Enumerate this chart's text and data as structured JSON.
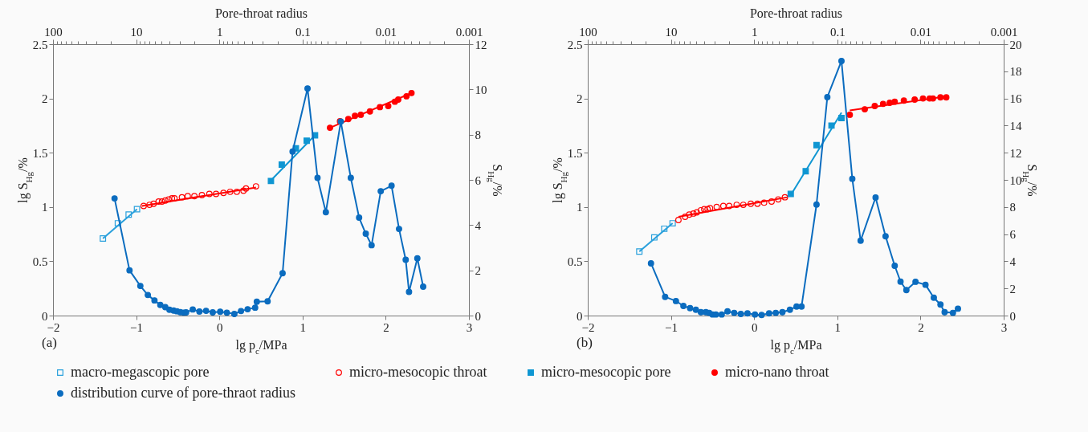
{
  "chart_data": [
    {
      "type": "scatter",
      "xlabel": "lg p$_{c}$/MPa",
      "ylabel": "lg S$_{Hg}$/%",
      "y2label": "S$_{Hg}$/%",
      "x2label": "Pore-throat radius",
      "xlim": [
        -2,
        3
      ],
      "xticks": [
        -2,
        -1,
        0,
        1,
        2,
        3
      ],
      "ylim": [
        0,
        2.5
      ],
      "yticks": [
        0,
        0.5,
        1,
        1.5,
        2,
        2.5
      ],
      "y2lim": [
        0,
        12
      ],
      "y2ticks": [
        0,
        2,
        4,
        6,
        8,
        10,
        12
      ],
      "x2lim": [
        100,
        0.001
      ],
      "x2ticks": [
        100,
        {
          "value": 90,
          "label": null
        },
        {
          "value": 80,
          "label": null
        },
        {
          "value": 70,
          "label": null
        },
        {
          "value": 60,
          "label": null
        },
        {
          "value": 50,
          "label": null
        },
        {
          "value": 40,
          "label": null
        },
        {
          "value": 30,
          "label": null
        },
        {
          "value": 20,
          "label": null
        },
        10,
        {
          "value": 9,
          "label": null
        },
        {
          "value": 8,
          "label": null
        },
        {
          "value": 7,
          "label": null
        },
        {
          "value": 6,
          "label": null
        },
        {
          "value": 5,
          "label": null
        },
        {
          "value": 4,
          "label": null
        },
        {
          "value": 3,
          "label": null
        },
        {
          "value": 2,
          "label": null
        },
        1,
        {
          "value": 0.9,
          "label": null
        },
        {
          "value": 0.8,
          "label": null
        },
        {
          "value": 0.7,
          "label": null
        },
        {
          "value": 0.6,
          "label": null
        },
        {
          "value": 0.5,
          "label": null
        },
        {
          "value": 0.4,
          "label": null
        },
        {
          "value": 0.3,
          "label": null
        },
        {
          "value": 0.2,
          "label": null
        },
        0.1,
        {
          "value": 0.09,
          "label": null
        },
        {
          "value": 0.08,
          "label": null
        },
        {
          "value": 0.07,
          "label": null
        },
        {
          "value": 0.06,
          "label": null
        },
        {
          "value": 0.05,
          "label": null
        },
        {
          "value": 0.04,
          "label": null
        },
        {
          "value": 0.03,
          "label": null
        },
        {
          "value": 0.02,
          "label": null
        },
        0.01,
        {
          "value": 0.009,
          "label": null
        },
        {
          "value": 0.008,
          "label": null
        },
        {
          "value": 0.007,
          "label": null
        },
        {
          "value": 0.006,
          "label": null
        },
        {
          "value": 0.005,
          "label": null
        },
        {
          "value": 0.004,
          "label": null
        },
        {
          "value": 0.003,
          "label": null
        },
        {
          "value": 0.002,
          "label": null
        },
        0.001
      ],
      "legend": "bottom",
      "log": "x2",
      "annotations": [
        "(a)"
      ],
      "series": [
        {
          "type": "scatter",
          "name": "macro-megascopic pore",
          "color": "#29a0dc",
          "marker": "square-open",
          "x": [
            -1.4,
            -1.22,
            -1.09,
            -0.99
          ],
          "values": [
            0.71,
            0.85,
            0.93,
            0.98
          ]
        },
        {
          "type": "line",
          "color": "#29a0dc",
          "x": [
            -1.4,
            -0.99
          ],
          "values": [
            0.71,
            0.98
          ]
        },
        {
          "type": "scatter",
          "name": "micro-mesocopic throat",
          "color": "#ff0000",
          "marker": "circle-open",
          "x": [
            -0.91,
            -0.84,
            -0.79,
            -0.73,
            -0.69,
            -0.65,
            -0.61,
            -0.57,
            -0.54,
            -0.45,
            -0.38,
            -0.3,
            -0.21,
            -0.12,
            -0.04,
            0.05,
            0.13,
            0.21,
            0.29,
            0.32,
            0.44
          ],
          "values": [
            1.01,
            1.02,
            1.03,
            1.05,
            1.05,
            1.06,
            1.07,
            1.08,
            1.08,
            1.09,
            1.1,
            1.1,
            1.11,
            1.12,
            1.12,
            1.13,
            1.14,
            1.14,
            1.15,
            1.17,
            1.19
          ]
        },
        {
          "type": "line",
          "color": "#ff0000",
          "x": [
            -0.93,
            0.44
          ],
          "values": [
            1.01,
            1.18
          ]
        },
        {
          "type": "scatter",
          "name": "micro-mesocopic pore",
          "color": "#0f96d2",
          "marker": "square",
          "x": [
            0.62,
            0.75,
            0.92,
            1.05,
            1.15
          ],
          "values": [
            1.24,
            1.39,
            1.54,
            1.61,
            1.66
          ]
        },
        {
          "type": "line",
          "color": "#0f96d2",
          "x": [
            0.6,
            1.16
          ],
          "values": [
            1.23,
            1.67
          ]
        },
        {
          "type": "scatter",
          "name": "micro-nano throat",
          "color": "#ff0000",
          "marker": "circle",
          "x": [
            1.33,
            1.45,
            1.55,
            1.63,
            1.7,
            1.81,
            1.93,
            2.03,
            2.11,
            2.15,
            2.25,
            2.31
          ],
          "values": [
            1.73,
            1.79,
            1.81,
            1.84,
            1.85,
            1.88,
            1.92,
            1.93,
            1.97,
            1.99,
            2.02,
            2.05
          ]
        },
        {
          "type": "line",
          "color": "#ff0000",
          "x": [
            1.33,
            2.31
          ],
          "values": [
            1.73,
            2.05
          ]
        },
        {
          "type": "line",
          "name": "distribution curve of pore-thraot radius",
          "color": "#0b6cbf",
          "marker": "circle",
          "axis": "y2",
          "x": [
            -1.26,
            -1.08,
            -0.95,
            -0.86,
            -0.78,
            -0.71,
            -0.65,
            -0.6,
            -0.55,
            -0.51,
            -0.47,
            -0.43,
            -0.4,
            -0.32,
            -0.24,
            -0.16,
            -0.08,
            0.01,
            0.09,
            0.18,
            0.26,
            0.34,
            0.43,
            0.45,
            0.58,
            0.76,
            0.88,
            1.06,
            1.18,
            1.28,
            1.46,
            1.58,
            1.68,
            1.76,
            1.83,
            1.94,
            2.07,
            2.16,
            2.24,
            2.28,
            2.38,
            2.45
          ],
          "values": [
            5.18,
            2.0,
            1.31,
            0.91,
            0.67,
            0.47,
            0.37,
            0.26,
            0.22,
            0.19,
            0.15,
            0.13,
            0.14,
            0.27,
            0.18,
            0.21,
            0.14,
            0.17,
            0.13,
            0.07,
            0.2,
            0.28,
            0.35,
            0.61,
            0.63,
            1.87,
            7.25,
            10.04,
            6.09,
            4.57,
            8.58,
            6.09,
            4.33,
            3.62,
            3.11,
            5.5,
            5.74,
            3.83,
            2.47,
            1.05,
            2.53,
            1.28
          ]
        }
      ]
    },
    {
      "type": "scatter",
      "xlabel": "lg p$_{c}$/MPa",
      "ylabel": "lg S$_{Hg}$/%",
      "y2label": "S$_{Hg}$/%",
      "x2label": "Pore-throat radius",
      "xlim": [
        -2,
        3
      ],
      "xticks": [
        -2,
        -1,
        0,
        1,
        2,
        3
      ],
      "ylim": [
        0,
        2.5
      ],
      "yticks": [
        0,
        0.5,
        1,
        1.5,
        2,
        2.5
      ],
      "y2lim": [
        0,
        20
      ],
      "y2ticks": [
        0,
        2,
        4,
        6,
        8,
        10,
        12,
        14,
        16,
        18,
        20
      ],
      "x2lim": [
        100,
        0.001
      ],
      "x2ticks": [
        100,
        {
          "value": 90,
          "label": null
        },
        {
          "value": 80,
          "label": null
        },
        {
          "value": 70,
          "label": null
        },
        {
          "value": 60,
          "label": null
        },
        {
          "value": 50,
          "label": null
        },
        {
          "value": 40,
          "label": null
        },
        {
          "value": 30,
          "label": null
        },
        {
          "value": 20,
          "label": null
        },
        10,
        {
          "value": 9,
          "label": null
        },
        {
          "value": 8,
          "label": null
        },
        {
          "value": 7,
          "label": null
        },
        {
          "value": 6,
          "label": null
        },
        {
          "value": 5,
          "label": null
        },
        {
          "value": 4,
          "label": null
        },
        {
          "value": 3,
          "label": null
        },
        {
          "value": 2,
          "label": null
        },
        1,
        {
          "value": 0.9,
          "label": null
        },
        {
          "value": 0.8,
          "label": null
        },
        {
          "value": 0.7,
          "label": null
        },
        {
          "value": 0.6,
          "label": null
        },
        {
          "value": 0.5,
          "label": null
        },
        {
          "value": 0.4,
          "label": null
        },
        {
          "value": 0.3,
          "label": null
        },
        {
          "value": 0.2,
          "label": null
        },
        0.1,
        {
          "value": 0.09,
          "label": null
        },
        {
          "value": 0.08,
          "label": null
        },
        {
          "value": 0.07,
          "label": null
        },
        {
          "value": 0.06,
          "label": null
        },
        {
          "value": 0.05,
          "label": null
        },
        {
          "value": 0.04,
          "label": null
        },
        {
          "value": 0.03,
          "label": null
        },
        {
          "value": 0.02,
          "label": null
        },
        0.01,
        {
          "value": 0.009,
          "label": null
        },
        {
          "value": 0.008,
          "label": null
        },
        {
          "value": 0.007,
          "label": null
        },
        {
          "value": 0.006,
          "label": null
        },
        {
          "value": 0.005,
          "label": null
        },
        {
          "value": 0.004,
          "label": null
        },
        {
          "value": 0.003,
          "label": null
        },
        {
          "value": 0.002,
          "label": null
        },
        0.001
      ],
      "legend": "bottom",
      "log": "x2",
      "annotations": [
        "(b)"
      ],
      "series": [
        {
          "type": "scatter",
          "name": "macro-megascopic pore",
          "color": "#29a0dc",
          "marker": "square-open",
          "x": [
            -1.38,
            -1.2,
            -1.08,
            -0.98
          ],
          "values": [
            0.59,
            0.72,
            0.8,
            0.85
          ]
        },
        {
          "type": "line",
          "color": "#29a0dc",
          "x": [
            -1.38,
            -0.98
          ],
          "values": [
            0.59,
            0.85
          ]
        },
        {
          "type": "scatter",
          "name": "micro-mesocopic throat",
          "color": "#ff0000",
          "marker": "circle-open",
          "x": [
            -0.91,
            -0.83,
            -0.78,
            -0.73,
            -0.69,
            -0.64,
            -0.6,
            -0.56,
            -0.53,
            -0.45,
            -0.37,
            -0.3,
            -0.21,
            -0.13,
            -0.04,
            0.04,
            0.12,
            0.21,
            0.29,
            0.37
          ],
          "values": [
            0.88,
            0.91,
            0.93,
            0.94,
            0.95,
            0.97,
            0.98,
            0.98,
            0.99,
            1.0,
            1.01,
            1.01,
            1.02,
            1.02,
            1.03,
            1.03,
            1.04,
            1.05,
            1.07,
            1.09
          ]
        },
        {
          "type": "line",
          "color": "#ff0000",
          "x": [
            -0.91,
            0.4
          ],
          "values": [
            0.91,
            1.09
          ]
        },
        {
          "type": "scatter",
          "name": "micro-mesocopic pore",
          "color": "#0f96d2",
          "marker": "square",
          "x": [
            0.44,
            0.62,
            0.75,
            0.93,
            1.05
          ],
          "values": [
            1.12,
            1.33,
            1.57,
            1.75,
            1.82
          ]
        },
        {
          "type": "line",
          "color": "#0f96d2",
          "x": [
            0.44,
            1.05
          ],
          "values": [
            1.11,
            1.87
          ]
        },
        {
          "type": "scatter",
          "name": "micro-nano throat",
          "color": "#ff0000",
          "marker": "circle",
          "x": [
            1.15,
            1.33,
            1.45,
            1.55,
            1.63,
            1.69,
            1.8,
            1.93,
            2.03,
            2.11,
            2.15,
            2.24,
            2.31
          ],
          "values": [
            1.85,
            1.9,
            1.93,
            1.95,
            1.96,
            1.97,
            1.98,
            1.99,
            2.0,
            2.0,
            2.0,
            2.01,
            2.01
          ]
        },
        {
          "type": "line",
          "color": "#ff0000",
          "x": [
            1.15,
            2.31
          ],
          "values": [
            1.89,
            2.02
          ]
        },
        {
          "type": "line",
          "name": "distribution curve of pore-thraot radius",
          "color": "#0b6cbf",
          "marker": "circle",
          "axis": "y2",
          "x": [
            -1.24,
            -1.07,
            -0.94,
            -0.85,
            -0.77,
            -0.7,
            -0.64,
            -0.58,
            -0.54,
            -0.5,
            -0.46,
            -0.39,
            -0.32,
            -0.24,
            -0.16,
            -0.08,
            0.01,
            0.09,
            0.18,
            0.26,
            0.34,
            0.43,
            0.51,
            0.57,
            0.75,
            0.88,
            1.05,
            1.18,
            1.28,
            1.46,
            1.58,
            1.69,
            1.76,
            1.83,
            1.94,
            2.06,
            2.16,
            2.24,
            2.29,
            2.39,
            2.45
          ],
          "values": [
            3.85,
            1.38,
            1.07,
            0.71,
            0.55,
            0.43,
            0.25,
            0.25,
            0.2,
            0.08,
            0.08,
            0.08,
            0.31,
            0.2,
            0.12,
            0.16,
            0.08,
            0.04,
            0.16,
            0.2,
            0.25,
            0.43,
            0.67,
            0.67,
            8.18,
            16.1,
            18.76,
            10.08,
            5.52,
            8.7,
            5.84,
            3.67,
            2.5,
            1.88,
            2.49,
            2.27,
            1.32,
            0.81,
            0.25,
            0.2,
            0.51
          ]
        }
      ]
    }
  ]
}
